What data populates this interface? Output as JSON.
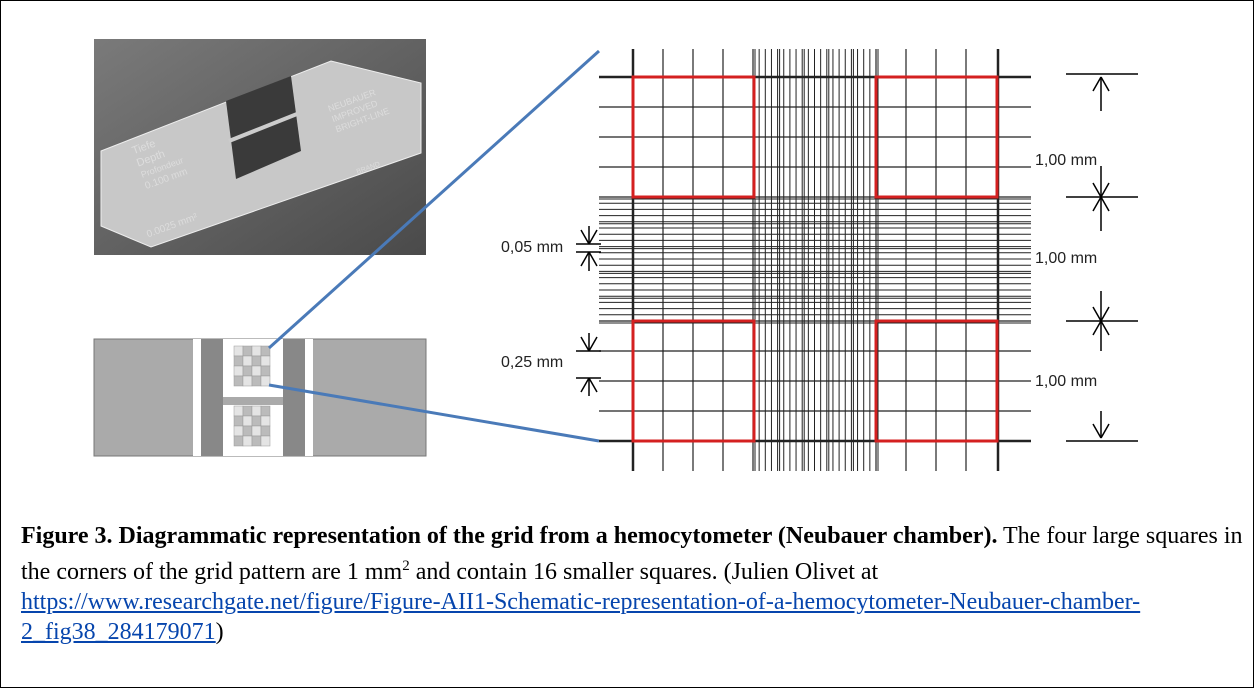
{
  "figure": {
    "photo_texts": [
      "Tiefe",
      "Depth",
      "Profondeur",
      "0.100 mm",
      "0.0025 mm²",
      "NEUBAUER",
      "IMPROVED",
      "BRIGHT-LINE",
      "BRAND"
    ],
    "dimensions": {
      "large": [
        "1,00 mm",
        "1,00 mm",
        "1,00 mm"
      ],
      "small": "0,05 mm",
      "medium": "0,25 mm"
    }
  },
  "caption": {
    "label": "Figure 3. Diagrammatic representation of the grid from a hemocytometer (Neubauer chamber).",
    "text": " The four large squares in the corners of the grid pattern are 1 mm",
    "superscript": "2",
    "text_after": " and contain 16 smaller squares.  (Julien Olivet at",
    "url": " https://www.researchgate.net/figure/Figure-AII1-Schematic-representation-of-a-hemocytometer-Neubauer-chamber-2_fig38_284179071",
    "close": ")"
  }
}
